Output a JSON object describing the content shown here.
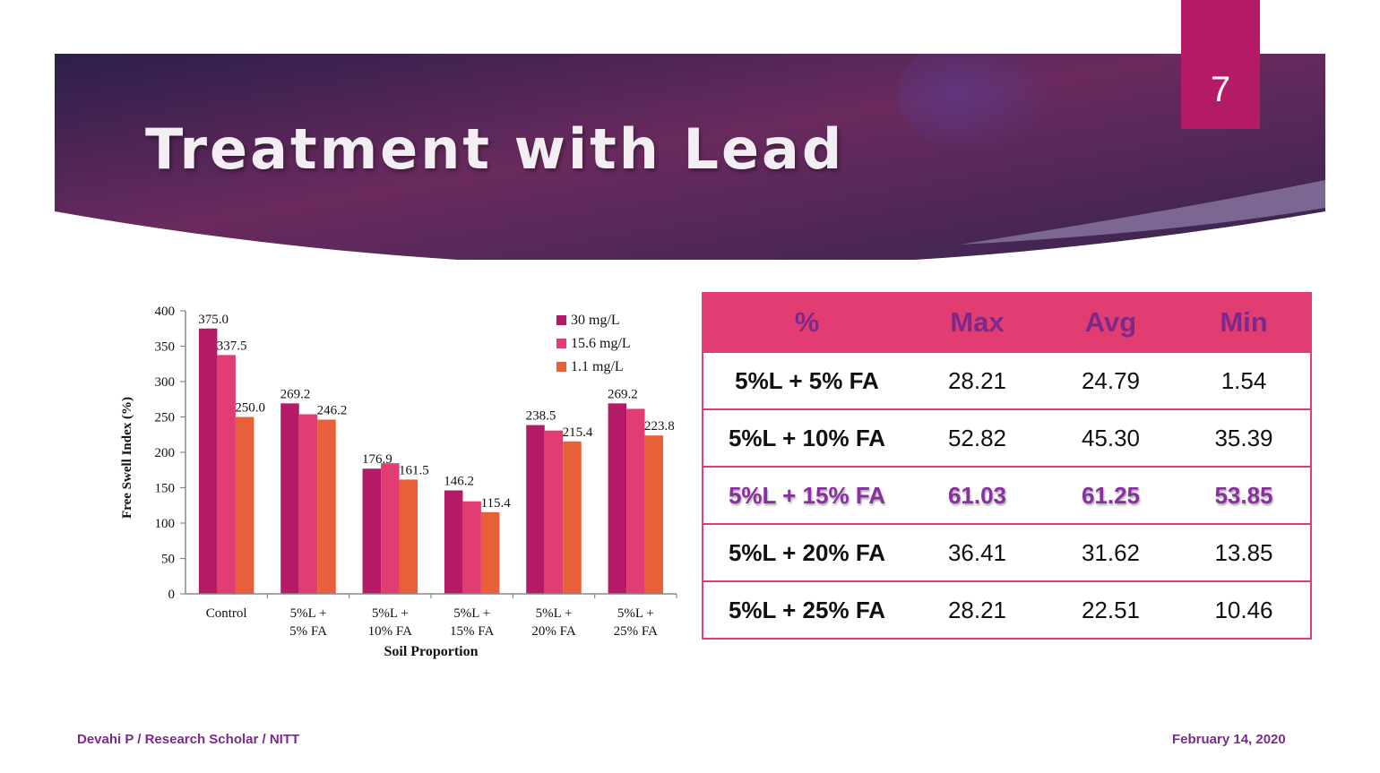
{
  "slide": {
    "title": "Treatment with Lead",
    "number": "7"
  },
  "colors": {
    "banner_dark": "#2c1f4a",
    "banner_mid": "#6a2a5e",
    "accent": "#b51a66",
    "table_header": "#e13d73",
    "table_text_highlight": "#8a2fa0"
  },
  "chart_data": {
    "type": "bar",
    "title": "",
    "xlabel": "Soil Proportion",
    "ylabel": "Free Swell Index (%)",
    "ylim": [
      0,
      400
    ],
    "yticks": [
      "0",
      "50",
      "100",
      "150",
      "200",
      "250",
      "300",
      "350",
      "400"
    ],
    "categories": [
      [
        "Control"
      ],
      [
        "5%L +",
        "5% FA"
      ],
      [
        "5%L +",
        "10% FA"
      ],
      [
        "5%L +",
        "15% FA"
      ],
      [
        "5%L +",
        "20% FA"
      ],
      [
        "5%L +",
        "25% FA"
      ]
    ],
    "series": [
      {
        "name": "30 mg/L",
        "color": "#b51a66",
        "values": [
          375.0,
          269.2,
          176.9,
          146.2,
          238.5,
          269.2
        ]
      },
      {
        "name": "15.6 mg/L",
        "color": "#e13d73",
        "values": [
          337.5,
          253.8,
          184.6,
          130.8,
          230.8,
          261.5
        ]
      },
      {
        "name": "1.1 mg/L",
        "color": "#e8603a",
        "values": [
          250.0,
          246.2,
          161.5,
          115.4,
          215.4,
          223.8
        ]
      }
    ],
    "data_labels": [
      {
        "text": "375.0",
        "cat": 0,
        "ser": 0
      },
      {
        "text": "337.5",
        "cat": 0,
        "ser": 1
      },
      {
        "text": "250.0",
        "cat": 0,
        "ser": 2
      },
      {
        "text": "269.2",
        "cat": 1,
        "ser": 0
      },
      {
        "text": "246.2",
        "cat": 1,
        "ser": 2
      },
      {
        "text": "176.9",
        "cat": 2,
        "ser": 0
      },
      {
        "text": "161.5",
        "cat": 2,
        "ser": 2
      },
      {
        "text": "146.2",
        "cat": 3,
        "ser": 0
      },
      {
        "text": "115.4",
        "cat": 3,
        "ser": 2
      },
      {
        "text": "238.5",
        "cat": 4,
        "ser": 0
      },
      {
        "text": "215.4",
        "cat": 4,
        "ser": 2
      },
      {
        "text": "269.2",
        "cat": 5,
        "ser": 0
      },
      {
        "text": "223.8",
        "cat": 5,
        "ser": 2
      }
    ],
    "grid": false,
    "legend_position": "top-right"
  },
  "table": {
    "headers": [
      "%",
      "Max",
      "Avg",
      "Min"
    ],
    "rows": [
      [
        "5%L + 5% FA",
        "28.21",
        "24.79",
        "1.54"
      ],
      [
        "5%L + 10% FA",
        "52.82",
        "45.30",
        "35.39"
      ],
      [
        "5%L + 15% FA",
        "61.03",
        "61.25",
        "53.85"
      ],
      [
        "5%L + 20% FA",
        "36.41",
        "31.62",
        "13.85"
      ],
      [
        "5%L + 25% FA",
        "28.21",
        "22.51",
        "10.46"
      ]
    ],
    "highlight_row": 2
  },
  "footer": {
    "left": "Devahi P / Research Scholar / NITT",
    "right": "February 14, 2020"
  }
}
